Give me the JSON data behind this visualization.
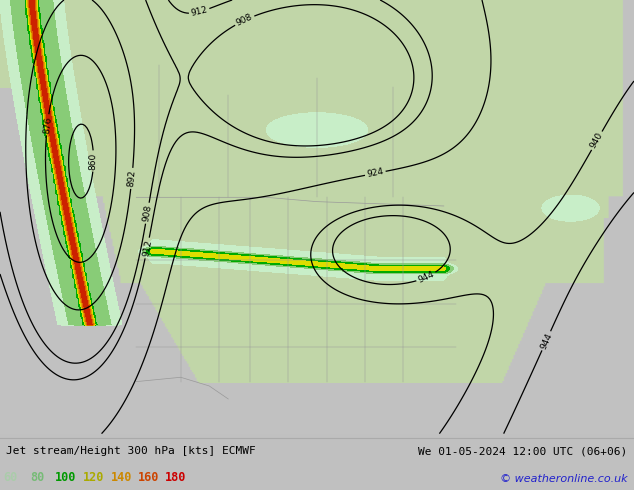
{
  "title_left": "Jet stream/Height 300 hPa [kts] ECMWF",
  "title_right": "We 01-05-2024 12:00 UTC (06+06)",
  "copyright": "© weatheronline.co.uk",
  "legend_values": [
    "60",
    "80",
    "100",
    "120",
    "140",
    "160",
    "180"
  ],
  "figsize": [
    6.34,
    4.9
  ],
  "dpi": 100,
  "ocean_color": [
    0.76,
    0.76,
    0.76
  ],
  "land_color": [
    0.76,
    0.84,
    0.66
  ],
  "fill_colors": [
    "#c8eec8",
    "#88cc77",
    "#00aa00",
    "#dddd00",
    "#ddaa00",
    "#dd6600",
    "#cc2200"
  ],
  "fill_levels": [
    60,
    80,
    100,
    120,
    140,
    160,
    180,
    250
  ],
  "contour_color": "black",
  "contour_lw": 0.9,
  "border_color": "#999999",
  "border_lw": 0.5,
  "text_colors_legend": [
    "#aaccaa",
    "#77bb77",
    "#009900",
    "#aaaa00",
    "#cc8800",
    "#cc4400",
    "#cc0000"
  ],
  "bottom_bg": "#e0e0e0",
  "title_fontsize": 8.0,
  "legend_fontsize": 8.5,
  "copyright_color": "#2222cc"
}
